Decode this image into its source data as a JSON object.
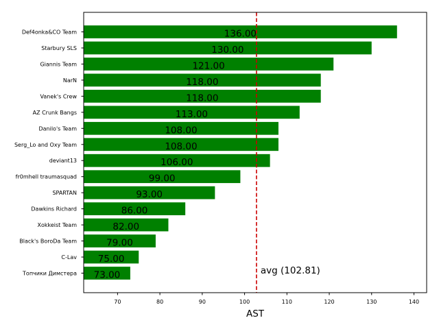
{
  "chart_data": {
    "type": "bar",
    "orientation": "horizontal",
    "categories": [
      "Def4onka&CO Team",
      "Starbury SLS",
      "Giannis Team",
      "NarN",
      "Vanek's Crew",
      "AZ Crunk Bangs",
      "Danilo's Team",
      "Serg_Lo and Oxy Team",
      "deviant13",
      "fr0mhell traumasquad",
      "SPARTAN",
      "Dawkins Richard",
      "Xokkeist Team",
      "Black's BoroDa Team",
      "C-Lav",
      "Топчики Димстера"
    ],
    "values": [
      136,
      130,
      121,
      118,
      118,
      113,
      108,
      108,
      106,
      99,
      93,
      86,
      82,
      79,
      75,
      73
    ],
    "value_labels": [
      "136.00",
      "130.00",
      "121.00",
      "118.00",
      "118.00",
      "113.00",
      "108.00",
      "108.00",
      "106.00",
      "99.00",
      "93.00",
      "86.00",
      "82.00",
      "79.00",
      "75.00",
      "73.00"
    ],
    "xlabel": "AST",
    "ylabel": "",
    "title": "",
    "xlim": [
      62,
      143
    ],
    "xticks": [
      70,
      80,
      90,
      100,
      110,
      120,
      130,
      140
    ],
    "xtick_labels": [
      "70",
      "80",
      "90",
      "100",
      "110",
      "120",
      "130",
      "140"
    ],
    "bar_color": "#008000",
    "average": {
      "value": 102.81,
      "label": "avg (102.81)",
      "color": "#cc0000",
      "style": "dashed"
    },
    "grid": false
  }
}
